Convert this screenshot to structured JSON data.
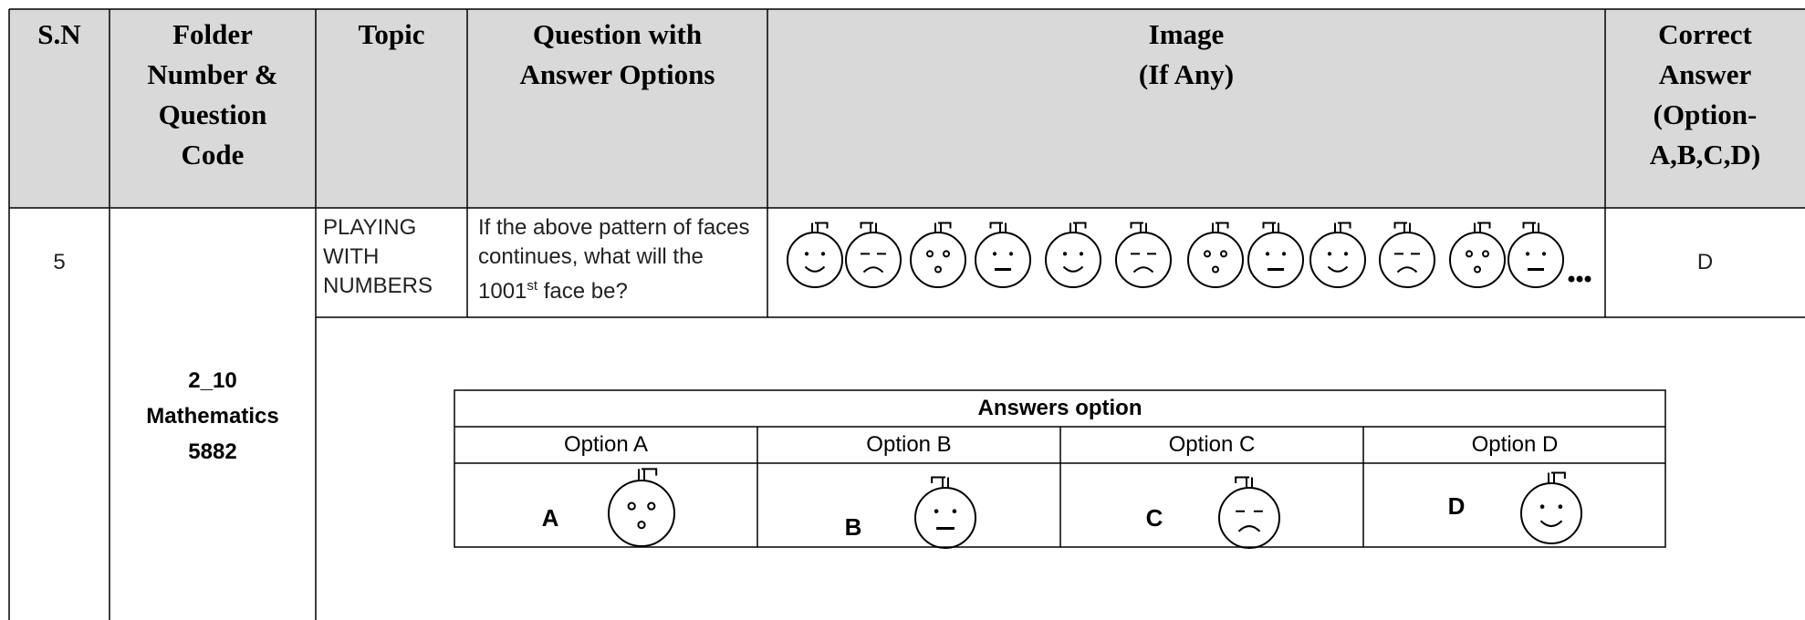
{
  "header": {
    "sn": "S.N",
    "folder": [
      "Folder",
      "Number &",
      "Question",
      "Code"
    ],
    "topic": "Topic",
    "question": [
      "Question with",
      "Answer Options"
    ],
    "image": [
      "Image",
      "(If Any)"
    ],
    "answer": [
      "Correct",
      "Answer",
      "(Option-",
      "A,B,C,D)"
    ]
  },
  "row": {
    "sn": "5",
    "folder": [
      "2_10",
      "Mathematics",
      "5882"
    ],
    "topic": [
      "PLAYING",
      "WITH",
      "NUMBERS"
    ],
    "question": {
      "before": "If the above pattern of faces continues, what will the 1001",
      "sup": "st",
      "after": " face be?"
    },
    "answer": "D"
  },
  "answers_table": {
    "title": "Answers option",
    "options": [
      "Option A",
      "Option B",
      "Option C",
      "Option D"
    ],
    "letters": [
      "A",
      "B",
      "C",
      "D"
    ]
  }
}
